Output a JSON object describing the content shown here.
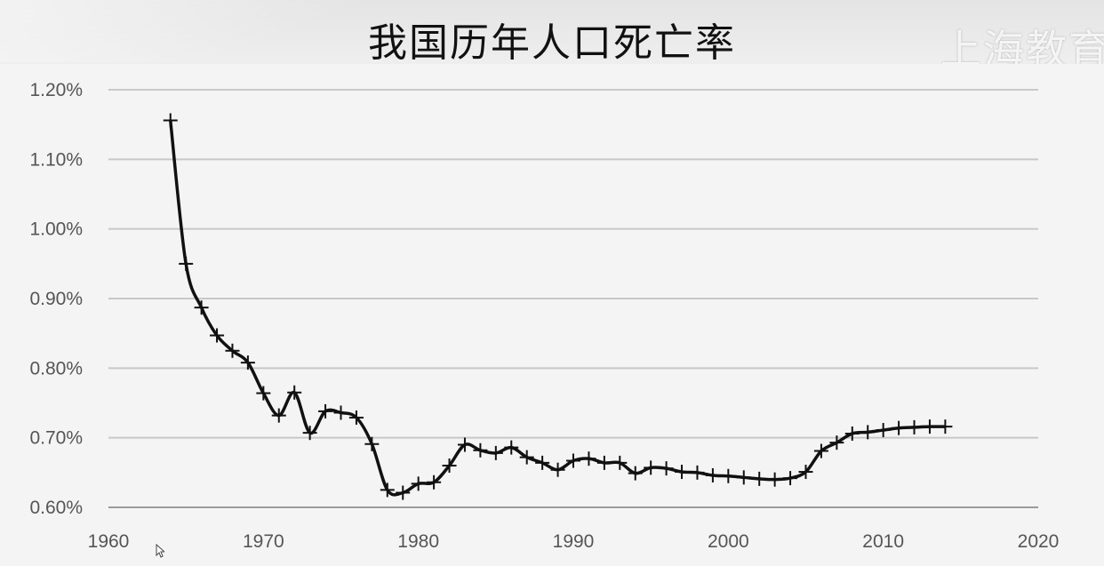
{
  "page": {
    "title": "我国历年人口死亡率",
    "watermark": "上海教育"
  },
  "colors": {
    "line": "#111111",
    "grid": "#c8c8c8",
    "tick_text": "#555555"
  },
  "chart_data": {
    "type": "line",
    "title": "我国历年人口死亡率",
    "xlabel": "",
    "ylabel": "",
    "xlim": [
      1960,
      2020
    ],
    "ylim": [
      0.006,
      0.012
    ],
    "x_ticks": [
      1960,
      1970,
      1980,
      1990,
      2000,
      2010,
      2020
    ],
    "x_tick_labels": [
      "1960",
      "1970",
      "1980",
      "1990",
      "2000",
      "2010",
      "2020"
    ],
    "y_ticks": [
      0.006,
      0.007,
      0.008,
      0.009,
      0.01,
      0.011,
      0.012
    ],
    "y_tick_labels": [
      "0.60%",
      "0.70%",
      "0.80%",
      "0.90%",
      "1.00%",
      "1.10%",
      "1.20%"
    ],
    "grid": "horizontal",
    "legend": "none",
    "series": [
      {
        "marker": "plus",
        "x": [
          1964,
          1965,
          1966,
          1967,
          1968,
          1969,
          1970,
          1971,
          1972,
          1973,
          1974,
          1975,
          1976,
          1977,
          1978,
          1979,
          1980,
          1981,
          1982,
          1983,
          1984,
          1985,
          1986,
          1987,
          1988,
          1989,
          1990,
          1991,
          1992,
          1993,
          1994,
          1995,
          1996,
          1997,
          1998,
          1999,
          2000,
          2001,
          2002,
          2003,
          2004,
          2005,
          2006,
          2007,
          2008,
          2009,
          2010,
          2011,
          2012,
          2013,
          2014
        ],
        "y": [
          0.01156,
          0.0095,
          0.00887,
          0.00847,
          0.00825,
          0.00808,
          0.00764,
          0.00732,
          0.00765,
          0.00707,
          0.00738,
          0.00736,
          0.00729,
          0.00691,
          0.00625,
          0.00621,
          0.00634,
          0.00636,
          0.0066,
          0.0069,
          0.00682,
          0.00678,
          0.00686,
          0.00672,
          0.00664,
          0.00654,
          0.00667,
          0.0067,
          0.00664,
          0.00664,
          0.00649,
          0.00657,
          0.00656,
          0.00651,
          0.0065,
          0.00646,
          0.00645,
          0.00643,
          0.00641,
          0.0064,
          0.00642,
          0.00651,
          0.00681,
          0.00693,
          0.00706,
          0.00708,
          0.00711,
          0.00714,
          0.00715,
          0.00716,
          0.00716
        ]
      }
    ]
  }
}
